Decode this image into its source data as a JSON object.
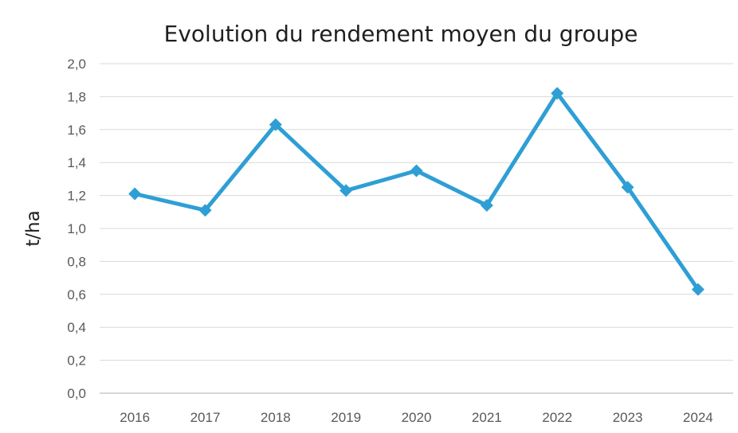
{
  "chart_data": {
    "type": "line",
    "title": "Evolution du rendement moyen du groupe",
    "xlabel": "",
    "ylabel": "t/ha",
    "categories": [
      "2016",
      "2017",
      "2018",
      "2019",
      "2020",
      "2021",
      "2022",
      "2023",
      "2024"
    ],
    "series": [
      {
        "values": [
          1.21,
          1.11,
          1.63,
          1.23,
          1.35,
          1.14,
          1.82,
          1.25,
          0.63
        ]
      }
    ],
    "y_ticks": [
      "0,0",
      "0,2",
      "0,4",
      "0,6",
      "0,8",
      "1,0",
      "1,2",
      "1,4",
      "1,6",
      "1,8",
      "2,0"
    ],
    "ylim": [
      0,
      2.0
    ],
    "grid": true,
    "legend": "none",
    "line_color": "#2e9fd4"
  }
}
